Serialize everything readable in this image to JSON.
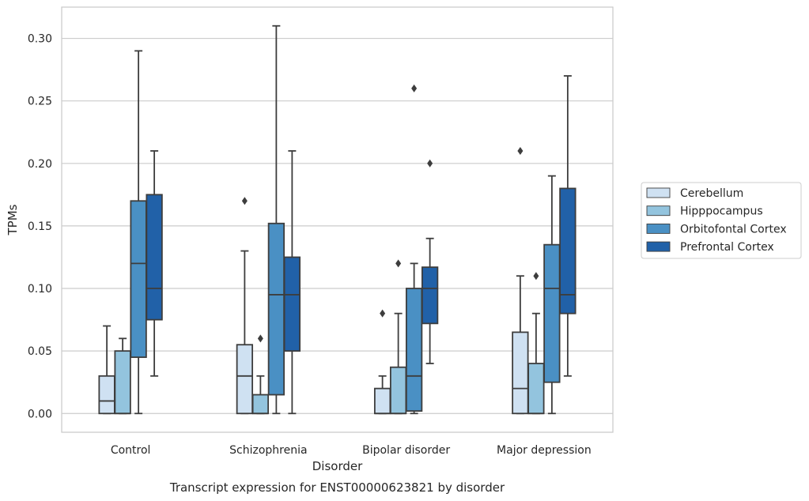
{
  "chart_data": {
    "type": "box",
    "xlabel": "Disorder",
    "ylabel": "TPMs",
    "caption": "Transcript expression for ENST00000623821 by disorder",
    "ylim": [
      -0.015,
      0.325
    ],
    "yticks": [
      "0.00",
      "0.05",
      "0.10",
      "0.15",
      "0.20",
      "0.25",
      "0.30"
    ],
    "grid": "horizontal",
    "legend_position": "right",
    "categories": [
      "Control",
      "Schizophrenia",
      "Bipolar disorder",
      "Major depression"
    ],
    "series": [
      {
        "name": "Cerebellum",
        "color": "#cfe1f2",
        "boxes": [
          {
            "min": 0.0,
            "q1": 0.0,
            "median": 0.01,
            "q3": 0.03,
            "max": 0.07,
            "outliers": []
          },
          {
            "min": 0.0,
            "q1": 0.0,
            "median": 0.03,
            "q3": 0.055,
            "max": 0.13,
            "outliers": [
              0.17
            ]
          },
          {
            "min": 0.0,
            "q1": 0.0,
            "median": 0.0,
            "q3": 0.02,
            "max": 0.03,
            "outliers": [
              0.08
            ]
          },
          {
            "min": 0.0,
            "q1": 0.0,
            "median": 0.02,
            "q3": 0.065,
            "max": 0.11,
            "outliers": [
              0.21
            ]
          }
        ]
      },
      {
        "name": "Hipppocampus",
        "color": "#93c4de",
        "boxes": [
          {
            "min": 0.0,
            "q1": 0.0,
            "median": 0.0,
            "q3": 0.05,
            "max": 0.06,
            "outliers": []
          },
          {
            "min": 0.0,
            "q1": 0.0,
            "median": 0.0,
            "q3": 0.015,
            "max": 0.03,
            "outliers": [
              0.06
            ]
          },
          {
            "min": 0.0,
            "q1": 0.0,
            "median": 0.0,
            "q3": 0.037,
            "max": 0.08,
            "outliers": [
              0.12
            ]
          },
          {
            "min": 0.0,
            "q1": 0.0,
            "median": 0.0,
            "q3": 0.04,
            "max": 0.08,
            "outliers": [
              0.11
            ]
          }
        ]
      },
      {
        "name": "Orbitofontal Cortex",
        "color": "#4a90c4",
        "boxes": [
          {
            "min": 0.0,
            "q1": 0.045,
            "median": 0.12,
            "q3": 0.17,
            "max": 0.29,
            "outliers": []
          },
          {
            "min": 0.0,
            "q1": 0.015,
            "median": 0.095,
            "q3": 0.152,
            "max": 0.31,
            "outliers": []
          },
          {
            "min": 0.0,
            "q1": 0.002,
            "median": 0.03,
            "q3": 0.1,
            "max": 0.12,
            "outliers": [
              0.26
            ]
          },
          {
            "min": 0.0,
            "q1": 0.025,
            "median": 0.1,
            "q3": 0.135,
            "max": 0.19,
            "outliers": []
          }
        ]
      },
      {
        "name": "Prefrontal Cortex",
        "color": "#2161a8",
        "boxes": [
          {
            "min": 0.03,
            "q1": 0.075,
            "median": 0.1,
            "q3": 0.175,
            "max": 0.21,
            "outliers": []
          },
          {
            "min": 0.0,
            "q1": 0.05,
            "median": 0.095,
            "q3": 0.125,
            "max": 0.21,
            "outliers": []
          },
          {
            "min": 0.04,
            "q1": 0.072,
            "median": 0.1,
            "q3": 0.117,
            "max": 0.14,
            "outliers": [
              0.2
            ]
          },
          {
            "min": 0.03,
            "q1": 0.08,
            "median": 0.095,
            "q3": 0.18,
            "max": 0.27,
            "outliers": []
          }
        ]
      }
    ]
  }
}
